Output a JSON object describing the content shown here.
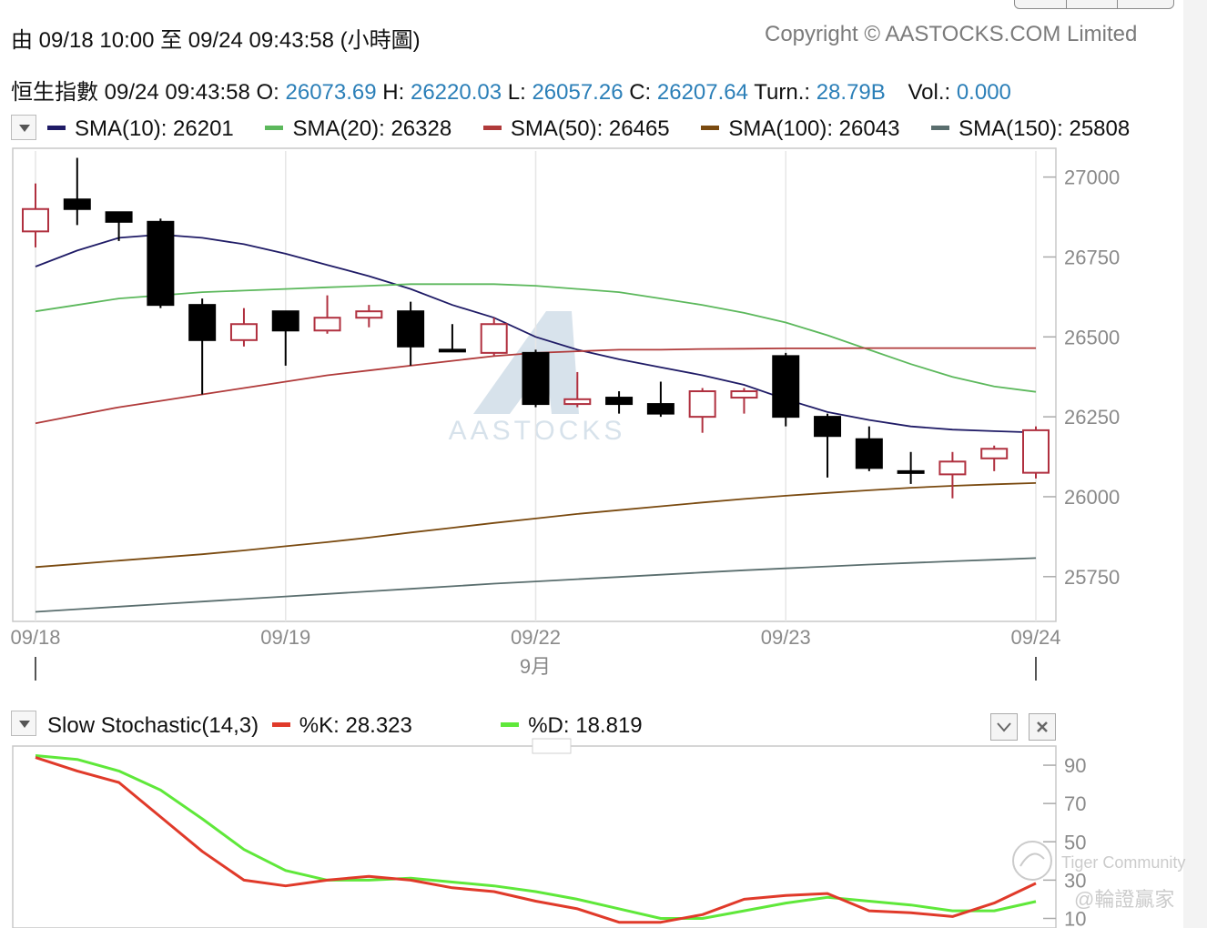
{
  "header": {
    "range_text": "由  09/18 10:00 至  09/24 09:43:58 (小時圖)",
    "copyright": "Copyright © AASTOCKS.COM Limited"
  },
  "quote": {
    "name": "恒生指數",
    "time": "09/24 09:43:58",
    "open_label": "O:",
    "open": "26073.69",
    "high_label": "H:",
    "high": "26220.03",
    "low_label": "L:",
    "low": "26057.26",
    "close_label": "C:",
    "close": "26207.64",
    "turn_label": "Turn.:",
    "turn": "28.79B",
    "vol_label": "Vol.:",
    "vol": "0.000"
  },
  "sma_legend": [
    {
      "label": "SMA(10): 26201",
      "color": "#1f1b66"
    },
    {
      "label": "SMA(20): 26328",
      "color": "#5cb85c"
    },
    {
      "label": "SMA(50): 26465",
      "color": "#b03a3a"
    },
    {
      "label": "SMA(100): 26043",
      "color": "#7a4a10"
    },
    {
      "label": "SMA(150): 25808",
      "color": "#5a6e6e"
    }
  ],
  "watermark": "AASTOCKS",
  "month_label": "9月",
  "stoch_legend": {
    "title": "Slow Stochastic(14,3)",
    "k_label": "%K: 28.323",
    "d_label": "%D: 18.819",
    "k_color": "#e03a2a",
    "d_color": "#5fe83a"
  },
  "overlay": {
    "community": "Tiger Community",
    "handle": "@輪證贏家"
  },
  "chart_data": [
    {
      "type": "candlestick",
      "title": "",
      "ylim": [
        25610,
        27090
      ],
      "y_ticks": [
        27000,
        26750,
        26500,
        26250,
        26000,
        25750
      ],
      "x_ticks": [
        "09/18",
        "09/19",
        "09/22",
        "09/23",
        "09/24"
      ],
      "up_color": "#b0303f",
      "down_color": "#000000",
      "candles": [
        {
          "o": 26830,
          "h": 26980,
          "l": 26780,
          "c": 26900
        },
        {
          "o": 26930,
          "h": 27060,
          "l": 26850,
          "c": 26900
        },
        {
          "o": 26890,
          "h": 26890,
          "l": 26800,
          "c": 26860
        },
        {
          "o": 26860,
          "h": 26870,
          "l": 26590,
          "c": 26600
        },
        {
          "o": 26600,
          "h": 26620,
          "l": 26320,
          "c": 26490
        },
        {
          "o": 26490,
          "h": 26590,
          "l": 26470,
          "c": 26540
        },
        {
          "o": 26580,
          "h": 26580,
          "l": 26410,
          "c": 26520
        },
        {
          "o": 26520,
          "h": 26630,
          "l": 26510,
          "c": 26560
        },
        {
          "o": 26560,
          "h": 26600,
          "l": 26530,
          "c": 26580
        },
        {
          "o": 26580,
          "h": 26610,
          "l": 26410,
          "c": 26470
        },
        {
          "o": 26460,
          "h": 26540,
          "l": 26455,
          "c": 26460
        },
        {
          "o": 26450,
          "h": 26560,
          "l": 26440,
          "c": 26540
        },
        {
          "o": 26450,
          "h": 26460,
          "l": 26280,
          "c": 26290
        },
        {
          "o": 26290,
          "h": 26390,
          "l": 26280,
          "c": 26305
        },
        {
          "o": 26310,
          "h": 26330,
          "l": 26260,
          "c": 26290
        },
        {
          "o": 26290,
          "h": 26360,
          "l": 26250,
          "c": 26260
        },
        {
          "o": 26250,
          "h": 26340,
          "l": 26200,
          "c": 26330
        },
        {
          "o": 26310,
          "h": 26340,
          "l": 26260,
          "c": 26330
        },
        {
          "o": 26440,
          "h": 26450,
          "l": 26220,
          "c": 26250
        },
        {
          "o": 26250,
          "h": 26260,
          "l": 26060,
          "c": 26190
        },
        {
          "o": 26180,
          "h": 26220,
          "l": 26080,
          "c": 26090
        },
        {
          "o": 26080,
          "h": 26140,
          "l": 26040,
          "c": 26075
        },
        {
          "o": 26070,
          "h": 26140,
          "l": 25995,
          "c": 26110
        },
        {
          "o": 26120,
          "h": 26160,
          "l": 26080,
          "c": 26150
        },
        {
          "o": 26075,
          "h": 26220,
          "l": 26057,
          "c": 26208
        }
      ],
      "series": [
        {
          "name": "SMA(10)",
          "color": "#1f1b66",
          "values": [
            26720,
            26770,
            26810,
            26820,
            26810,
            26790,
            26760,
            26725,
            26690,
            26650,
            26600,
            26560,
            26500,
            26460,
            26430,
            26405,
            26380,
            26350,
            26305,
            26265,
            26240,
            26220,
            26210,
            26205,
            26201
          ]
        },
        {
          "name": "SMA(20)",
          "color": "#5cb85c",
          "values": [
            26580,
            26600,
            26620,
            26630,
            26640,
            26645,
            26650,
            26655,
            26660,
            26665,
            26665,
            26665,
            26660,
            26650,
            26640,
            26620,
            26600,
            26575,
            26545,
            26505,
            26460,
            26415,
            26375,
            26345,
            26328
          ]
        },
        {
          "name": "SMA(50)",
          "color": "#b03a3a",
          "values": [
            26230,
            26255,
            26280,
            26300,
            26320,
            26340,
            26360,
            26380,
            26395,
            26410,
            26425,
            26440,
            26450,
            26455,
            26460,
            26460,
            26462,
            26463,
            26464,
            26464,
            26465,
            26465,
            26465,
            26465,
            26465
          ]
        },
        {
          "name": "SMA(100)",
          "color": "#7a4a10",
          "values": [
            25780,
            25790,
            25800,
            25810,
            25820,
            25832,
            25845,
            25858,
            25872,
            25888,
            25903,
            25918,
            25932,
            25946,
            25958,
            25970,
            25982,
            25993,
            26003,
            26012,
            26020,
            26028,
            26034,
            26039,
            26043
          ]
        },
        {
          "name": "SMA(150)",
          "color": "#5a6e6e",
          "values": [
            25640,
            25648,
            25656,
            25664,
            25672,
            25680,
            25688,
            25696,
            25704,
            25712,
            25720,
            25728,
            25735,
            25742,
            25749,
            25756,
            25763,
            25770,
            25776,
            25782,
            25788,
            25793,
            25798,
            25803,
            25808
          ]
        }
      ]
    },
    {
      "type": "line",
      "title": "",
      "ylim": [
        5,
        100
      ],
      "y_ticks": [
        90,
        70,
        50,
        30,
        10
      ],
      "series": [
        {
          "name": "%K",
          "color": "#e03a2a",
          "values": [
            94,
            87,
            81,
            63,
            45,
            30,
            27,
            30,
            32,
            30,
            26,
            24,
            19,
            15,
            8,
            8,
            12,
            20,
            22,
            23,
            14,
            13,
            11,
            18,
            28.323
          ]
        },
        {
          "name": "%D",
          "color": "#5fe83a",
          "values": [
            95,
            93,
            87,
            77,
            62,
            46,
            35,
            30,
            30,
            31,
            29,
            27,
            24,
            20,
            15,
            10,
            10,
            14,
            18,
            21,
            19,
            17,
            14,
            14,
            18.819
          ]
        }
      ]
    }
  ]
}
